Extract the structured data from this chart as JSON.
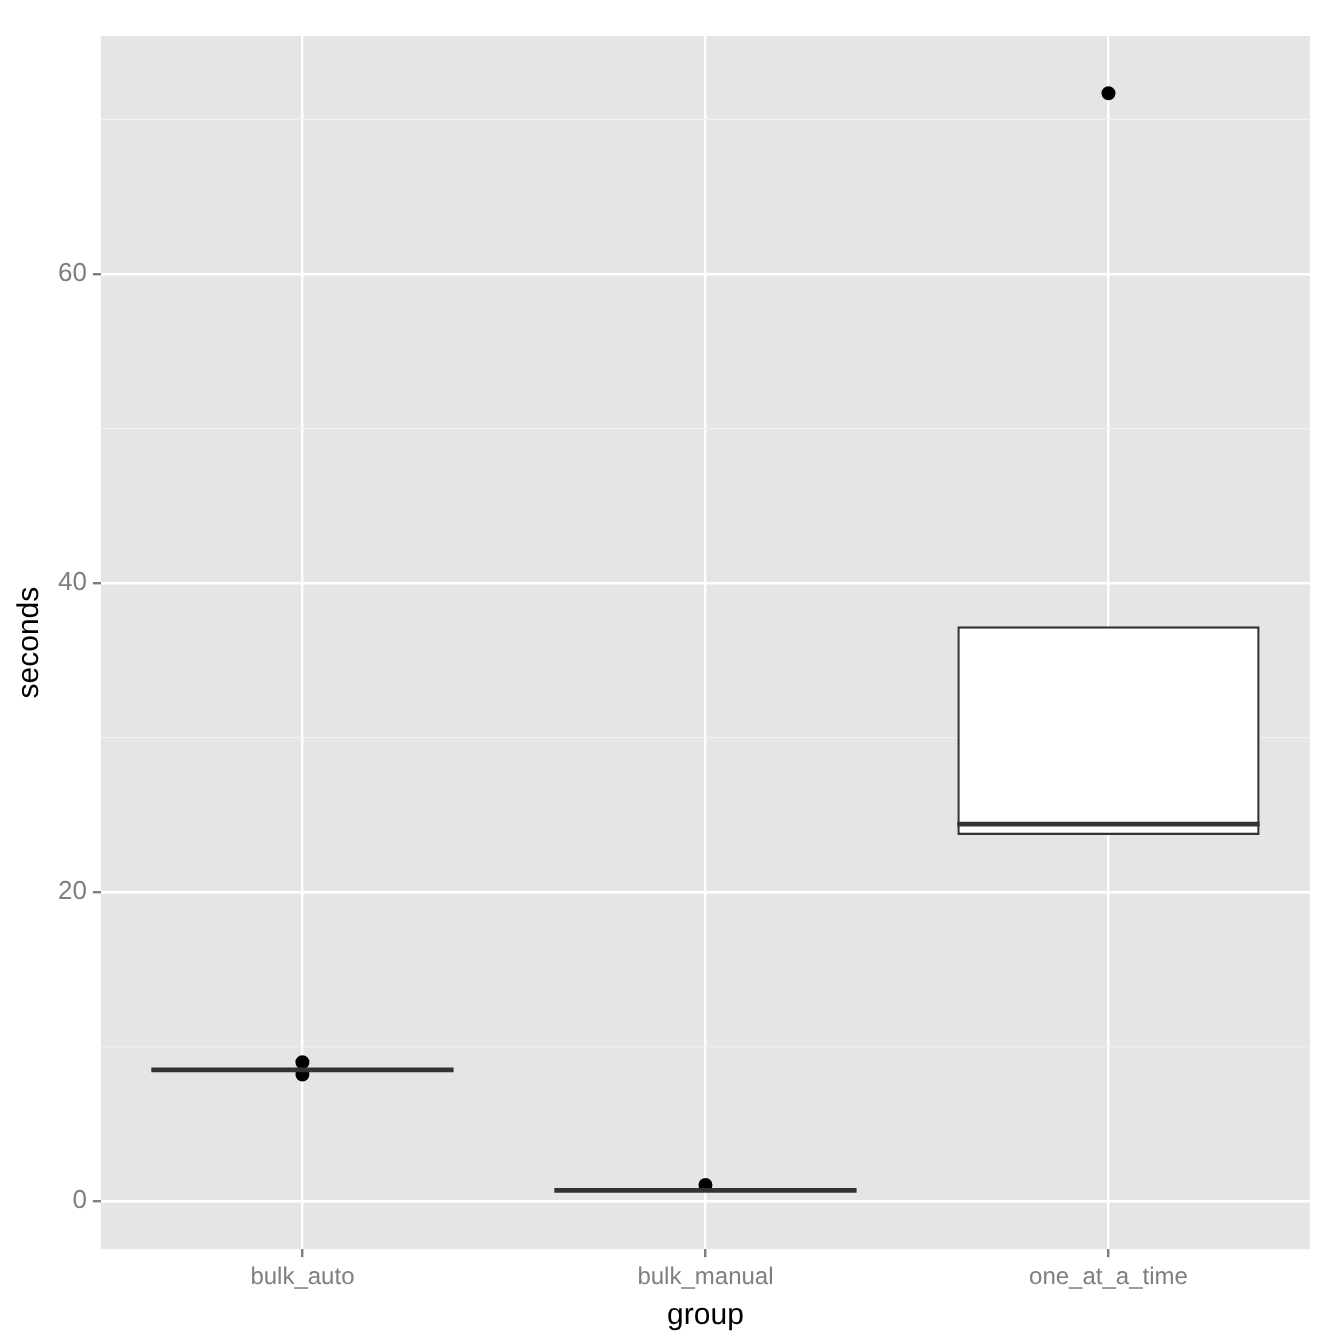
{
  "chart_data": {
    "type": "box",
    "xlabel": "group",
    "ylabel": "seconds",
    "categories": [
      "bulk_auto",
      "bulk_manual",
      "one_at_a_time"
    ],
    "boxes": [
      {
        "low": 8.5,
        "q1": 8.5,
        "median": 8.5,
        "q3": 8.5,
        "high": 8.5,
        "outliers": [
          9.0,
          8.2
        ]
      },
      {
        "low": 0.7,
        "q1": 0.7,
        "median": 0.7,
        "q3": 0.7,
        "high": 0.7,
        "outliers": [
          1.05
        ]
      },
      {
        "low": 23.7,
        "q1": 23.7,
        "median": 24.4,
        "q3": 37.2,
        "high": 37.2,
        "outliers": [
          71.7
        ]
      }
    ],
    "ylim": [
      -3.1,
      75.4
    ],
    "yticks": [
      0,
      20,
      40,
      60
    ],
    "grid": true
  }
}
